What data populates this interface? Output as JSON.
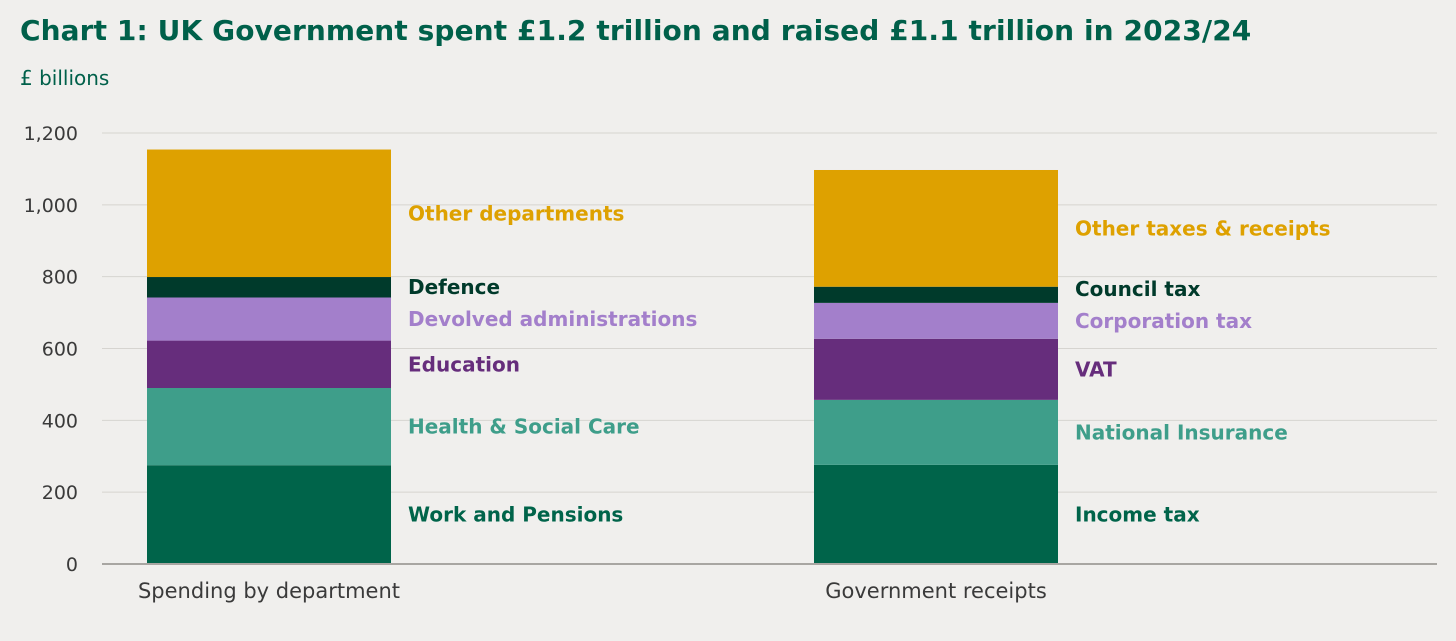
{
  "header": {
    "title": "Chart 1: UK Government spent £1.2 trillion and raised £1.1 trillion in 2023/24",
    "unit": "£ billions"
  },
  "chart_data": {
    "type": "bar",
    "stacked": true,
    "title": "Chart 1: UK Government spent £1.2 trillion and raised £1.1 trillion in 2023/24",
    "ylabel": "£ billions",
    "xlabel": "",
    "ylim": [
      0,
      1200
    ],
    "yticks": [
      0,
      200,
      400,
      600,
      800,
      1000,
      1200
    ],
    "ytick_labels": [
      "0",
      "200",
      "400",
      "600",
      "800",
      "1,000",
      "1,200"
    ],
    "grid": true,
    "legend": "direct labels to the right of each bar",
    "categories": [
      "Spending by department",
      "Government receipts"
    ],
    "stacks": [
      {
        "category": "Spending by department",
        "segments": [
          {
            "name": "Work and Pensions",
            "value": 275,
            "color": "#00644a"
          },
          {
            "name": "Health & Social Care",
            "value": 215,
            "color": "#3e9e8a"
          },
          {
            "name": "Education",
            "value": 132,
            "color": "#662d7c"
          },
          {
            "name": "Devolved administrations",
            "value": 120,
            "color": "#a37fcb"
          },
          {
            "name": "Defence",
            "value": 57,
            "color": "#003a2b"
          },
          {
            "name": "Other departments",
            "value": 355,
            "color": "#dea100"
          }
        ]
      },
      {
        "category": "Government receipts",
        "segments": [
          {
            "name": "Income tax",
            "value": 276,
            "color": "#00644a"
          },
          {
            "name": "National Insurance",
            "value": 181,
            "color": "#3e9e8a"
          },
          {
            "name": "VAT",
            "value": 170,
            "color": "#662d7c"
          },
          {
            "name": "Corporation tax",
            "value": 100,
            "color": "#a37fcb"
          },
          {
            "name": "Council tax",
            "value": 45,
            "color": "#003a2b"
          },
          {
            "name": "Other taxes & receipts",
            "value": 325,
            "color": "#dea100"
          }
        ]
      }
    ]
  }
}
